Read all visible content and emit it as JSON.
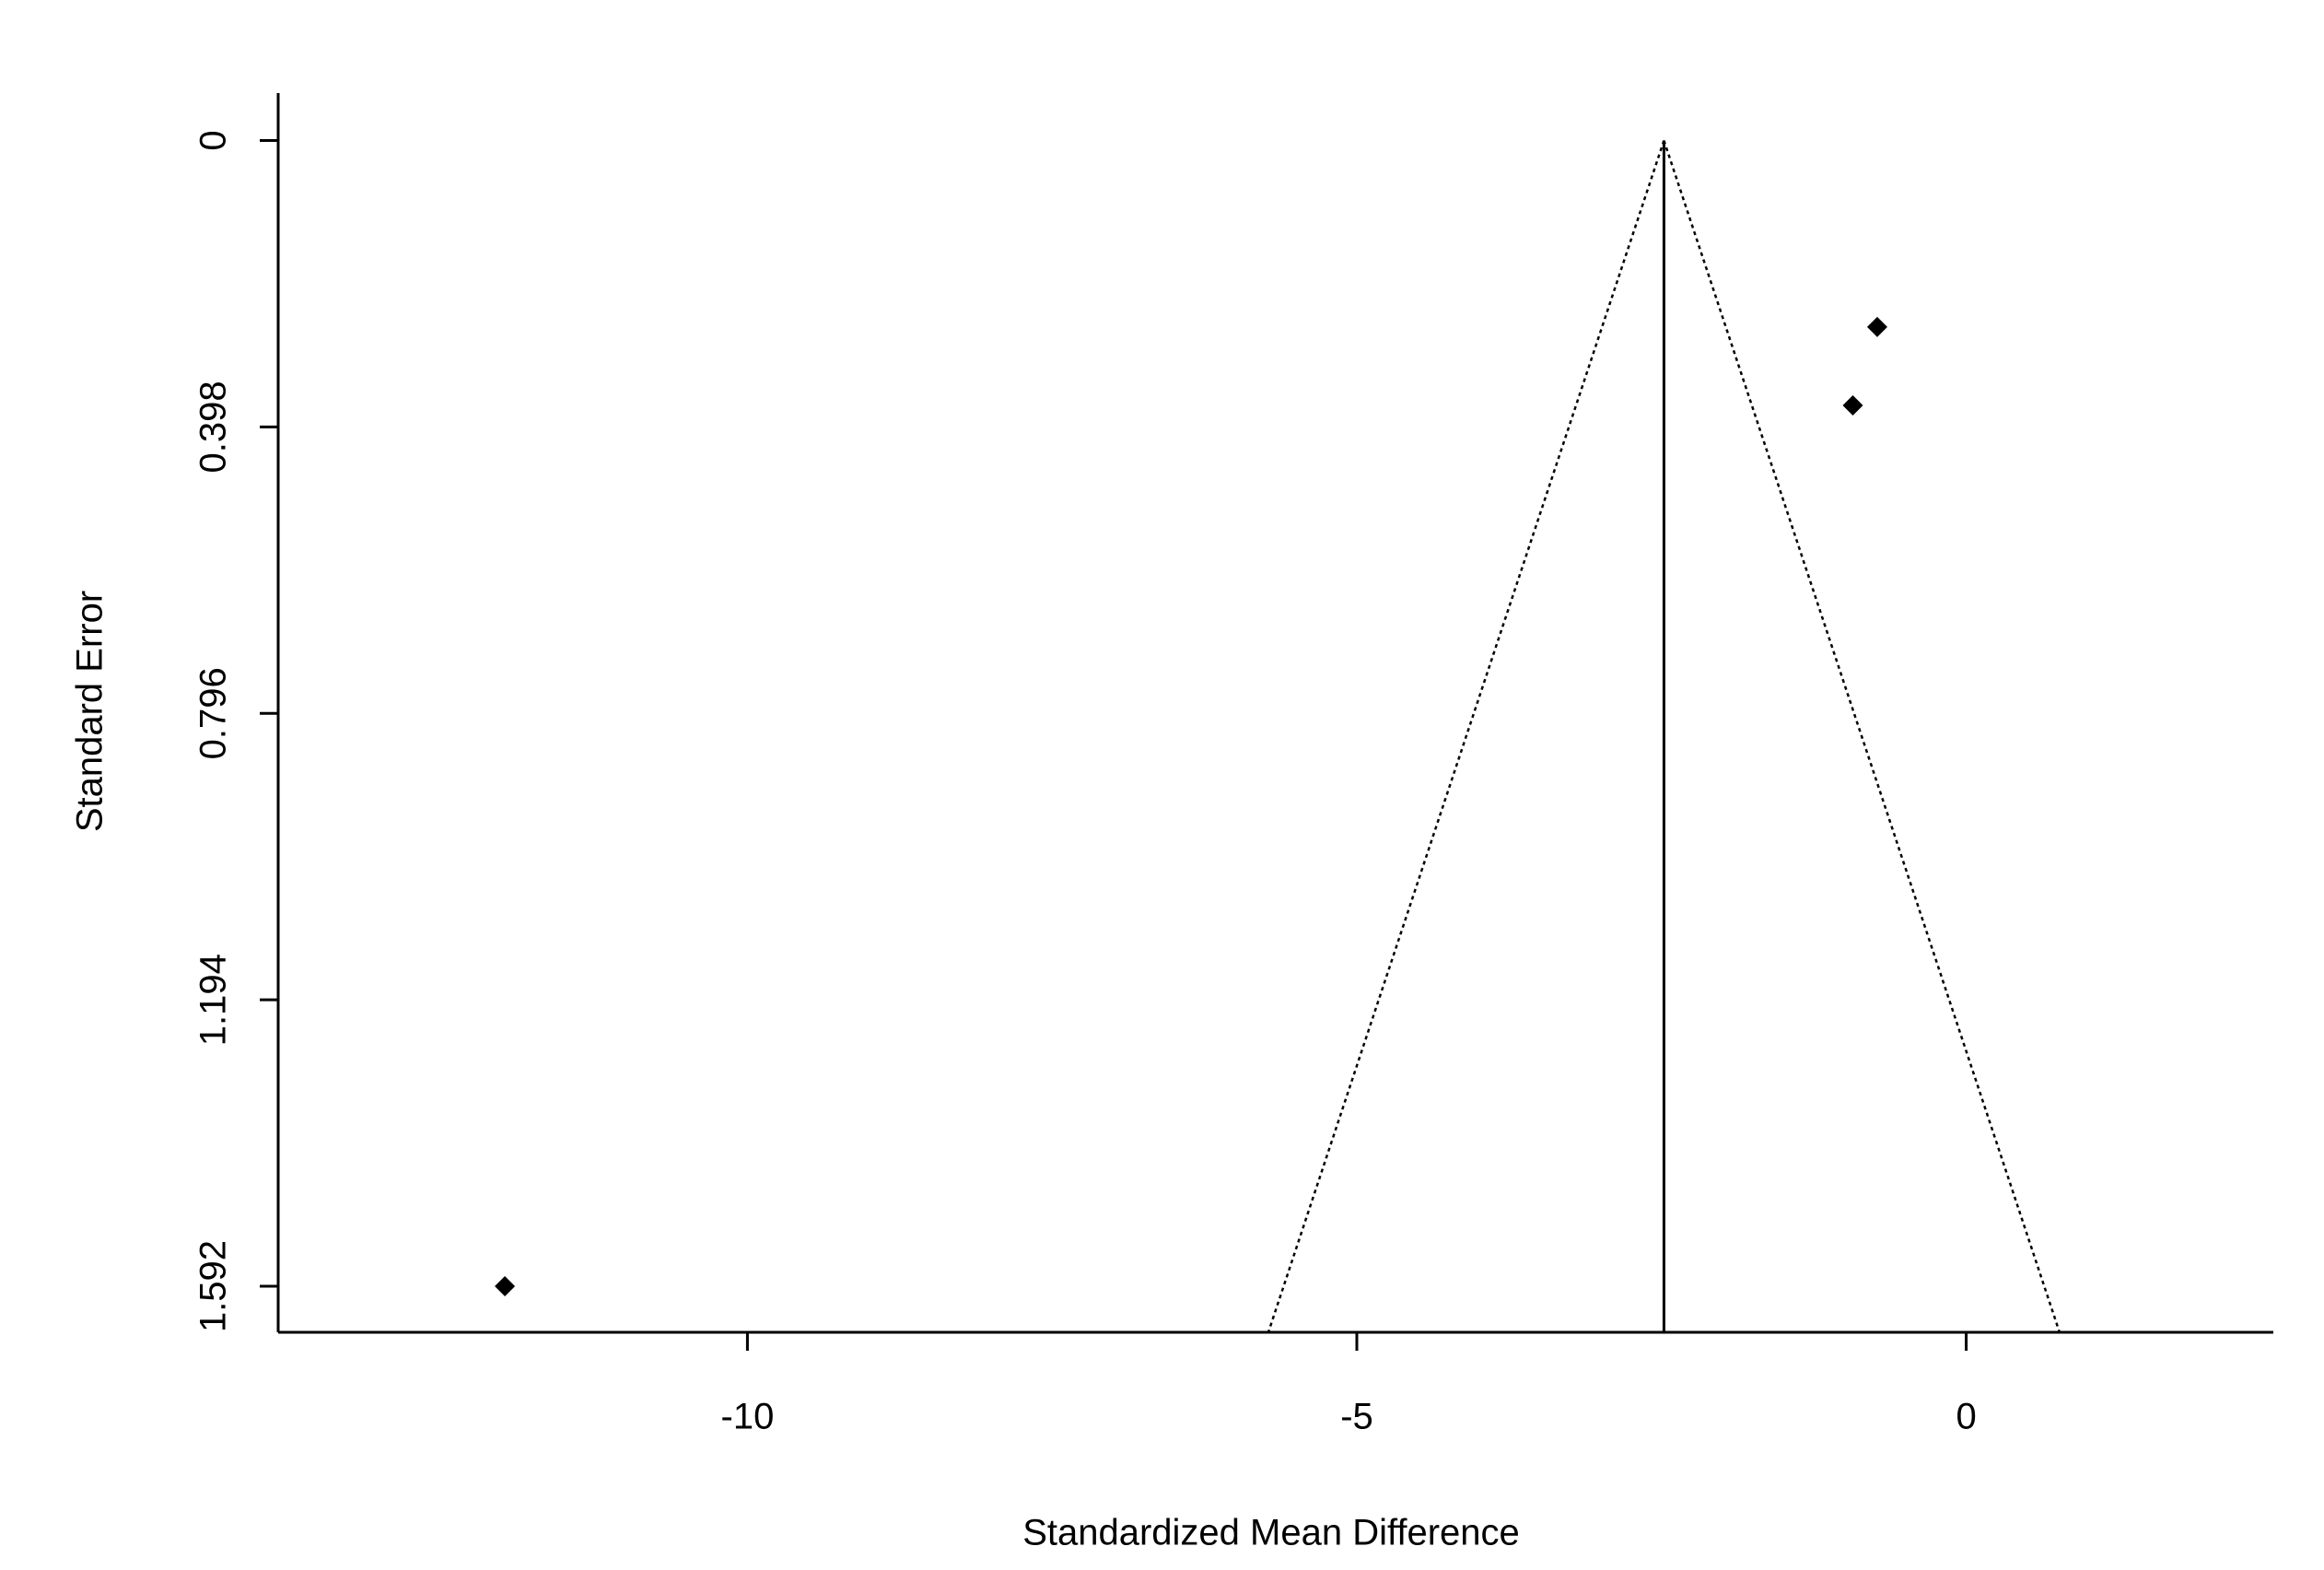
{
  "chart_data": {
    "type": "scatter",
    "xlabel": "Standardized Mean Difference",
    "ylabel": "Standard Error",
    "x": [
      -0.73,
      -0.93,
      -11.99
    ],
    "values": [
      0.259,
      0.368,
      1.592
    ],
    "color": "#000000",
    "reference_line": -2.48,
    "xlim": [
      -13.85,
      2.52
    ],
    "xticks": [
      -10,
      -5,
      0
    ],
    "ylim": [
      -0.066,
      1.656
    ],
    "yticks": [
      0,
      0.398,
      0.796,
      1.194,
      1.592
    ],
    "y_reversed": true,
    "grid": false
  }
}
